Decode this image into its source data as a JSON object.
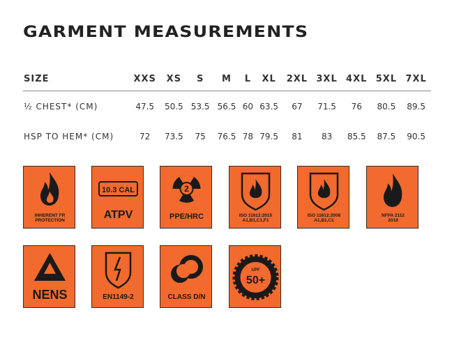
{
  "header": {
    "title": "GARMENT MEASUREMENTS"
  },
  "table": {
    "columns": [
      "SIZE",
      "XXS",
      "XS",
      "S",
      "M",
      "L",
      "XL",
      "2XL",
      "3XL",
      "4XL",
      "5XL",
      "7XL"
    ],
    "rows": [
      [
        "½ CHEST* (CM)",
        47.5,
        50.5,
        53.5,
        56.5,
        60,
        63.5,
        67,
        71.5,
        76,
        80.5,
        89.5
      ],
      [
        "HSP TO HEM* (CM)",
        72,
        73.5,
        75,
        76.5,
        78,
        79.5,
        81,
        83,
        85.5,
        87.5,
        90.5
      ]
    ]
  },
  "badges": [
    {
      "lines": [
        "INHERENT FR",
        "PROTECTION"
      ]
    },
    {
      "lines": [
        "10.3 CAL",
        "ATPV"
      ]
    },
    {
      "lines": [
        "2",
        "PPE/HRC"
      ]
    },
    {
      "lines": [
        "ISO 11612:2015",
        "A1,B1,C1,F1"
      ]
    },
    {
      "lines": [
        "ISO 11612:2008",
        "A1,B1,C1"
      ]
    },
    {
      "lines": [
        "NFPA 2112",
        "2018"
      ]
    },
    {
      "lines": [
        "NENS"
      ]
    },
    {
      "lines": [
        "EN1149-2"
      ]
    },
    {
      "lines": [
        "CLASS D/N"
      ]
    },
    {
      "lines": [
        "UPF",
        "50+"
      ]
    }
  ]
}
